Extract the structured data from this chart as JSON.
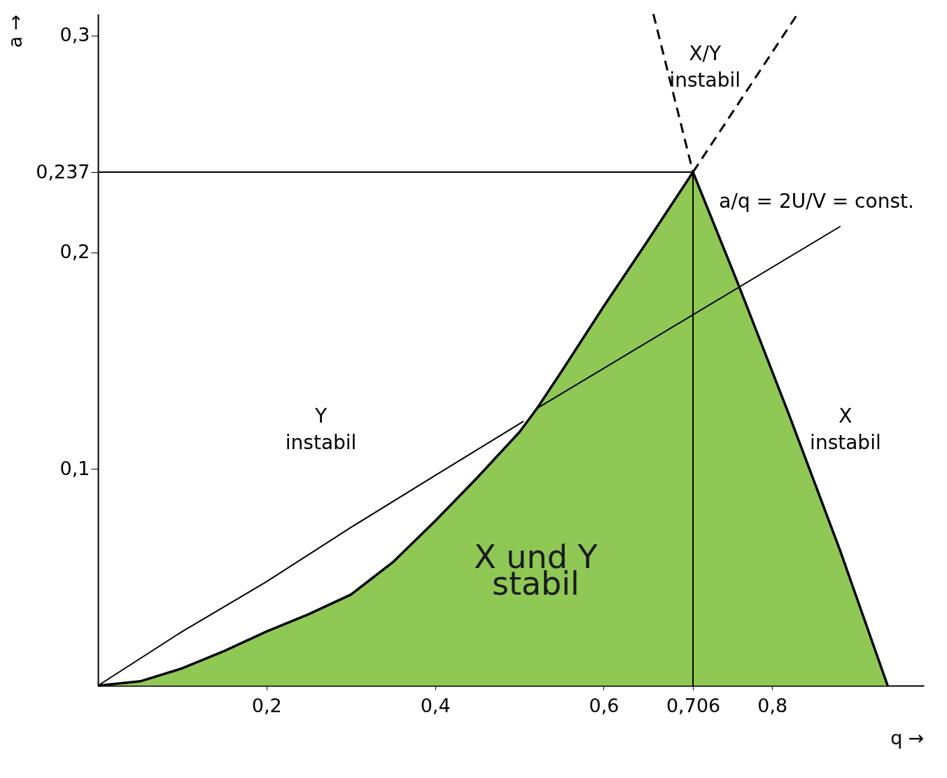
{
  "chart_data": {
    "type": "line",
    "xlabel": "q →",
    "ylabel": "a →",
    "xlim": [
      0,
      0.98
    ],
    "ylim": [
      0,
      0.31
    ],
    "xticks": [
      {
        "value": 0.2,
        "label": "0,2"
      },
      {
        "value": 0.4,
        "label": "0,4"
      },
      {
        "value": 0.6,
        "label": "0,6"
      },
      {
        "value": 0.706,
        "label": "0,706"
      },
      {
        "value": 0.8,
        "label": "0,8"
      }
    ],
    "yticks": [
      {
        "value": 0.1,
        "label": "0,1"
      },
      {
        "value": 0.2,
        "label": "0,2"
      },
      {
        "value": 0.237,
        "label": "0,237"
      },
      {
        "value": 0.3,
        "label": "0,3"
      }
    ],
    "series": [
      {
        "type": "area",
        "color": "#8fc855",
        "x": [
          0,
          0.05,
          0.1,
          0.15,
          0.2,
          0.25,
          0.3,
          0.35,
          0.4,
          0.45,
          0.5,
          0.521,
          0.55,
          0.6,
          0.65,
          0.706,
          0.76,
          0.82,
          0.88,
          0.937
        ],
        "values": [
          0,
          0.002,
          0.008,
          0.016,
          0.025,
          0.033,
          0.042,
          0.057,
          0.076,
          0.096,
          0.117,
          0.128,
          0.145,
          0.175,
          0.204,
          0.237,
          0.185,
          0.125,
          0.063,
          0
        ]
      },
      {
        "color": "#000000",
        "x": [
          0.521,
          0.881
        ],
        "values": [
          0.128,
          0.212
        ]
      },
      {
        "color": "#000000",
        "x": [
          0,
          0.1,
          0.2,
          0.3,
          0.4,
          0.505
        ],
        "values": [
          0,
          0.025,
          0.048,
          0.073,
          0.097,
          0.122
        ]
      },
      {
        "color": "#000000",
        "x": [
          0,
          0.706
        ],
        "values": [
          0.237,
          0.237
        ]
      },
      {
        "color": "#000000",
        "x": [
          0.706,
          0.706
        ],
        "values": [
          0,
          0.237
        ]
      },
      {
        "color": "#000000",
        "line_style": "dashed",
        "x": [
          0.659,
          0.706
        ],
        "values": [
          0.31,
          0.237
        ]
      },
      {
        "color": "#000000",
        "line_style": "dashed",
        "x": [
          0.706,
          0.83
        ],
        "values": [
          0.237,
          0.31
        ]
      }
    ],
    "annotations": [
      "X/Y\ninstabil",
      "Y\ninstabil",
      "X\ninstabil",
      "X und Y\nstabil",
      "a/q = 2U/V = const."
    ]
  }
}
